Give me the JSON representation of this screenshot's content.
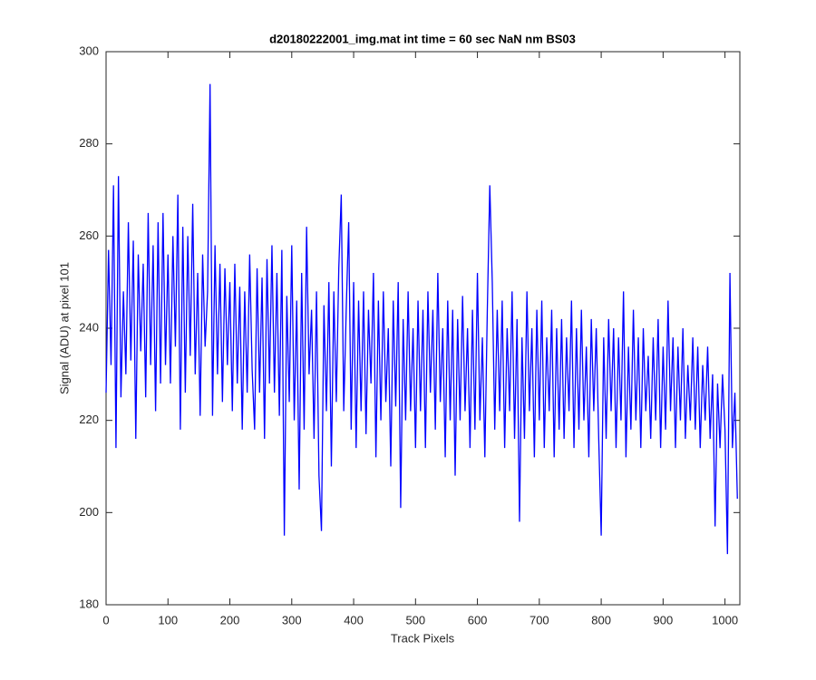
{
  "chart_data": {
    "type": "line",
    "title": "d20180222001_img.mat int time = 60 sec  NaN nm BS03",
    "x_label": "Track Pixels",
    "y_label": "Signal (ADU) at pixel 101",
    "color": "#0000ff",
    "xlim": [
      0,
      1024
    ],
    "ylim": [
      180,
      300
    ],
    "xticks": [
      0,
      100,
      200,
      300,
      400,
      500,
      600,
      700,
      800,
      900,
      1000
    ],
    "yticks": [
      180,
      200,
      220,
      240,
      260,
      280,
      300
    ],
    "grid": false,
    "x": [
      0,
      4,
      8,
      12,
      16,
      20,
      24,
      28,
      32,
      36,
      40,
      44,
      48,
      52,
      56,
      60,
      64,
      68,
      72,
      76,
      80,
      84,
      88,
      92,
      96,
      100,
      104,
      108,
      112,
      116,
      120,
      124,
      128,
      132,
      136,
      140,
      144,
      148,
      152,
      156,
      160,
      164,
      168,
      172,
      176,
      180,
      184,
      188,
      192,
      196,
      200,
      204,
      208,
      212,
      216,
      220,
      224,
      228,
      232,
      236,
      240,
      244,
      248,
      252,
      256,
      260,
      264,
      268,
      272,
      276,
      280,
      284,
      288,
      292,
      296,
      300,
      304,
      308,
      312,
      316,
      320,
      324,
      328,
      332,
      336,
      340,
      344,
      348,
      352,
      356,
      360,
      364,
      368,
      372,
      376,
      380,
      384,
      388,
      392,
      396,
      400,
      404,
      408,
      412,
      416,
      420,
      424,
      428,
      432,
      436,
      440,
      444,
      448,
      452,
      456,
      460,
      464,
      468,
      472,
      476,
      480,
      484,
      488,
      492,
      496,
      500,
      504,
      508,
      512,
      516,
      520,
      524,
      528,
      532,
      536,
      540,
      544,
      548,
      552,
      556,
      560,
      564,
      568,
      572,
      576,
      580,
      584,
      588,
      592,
      596,
      600,
      604,
      608,
      612,
      616,
      620,
      624,
      628,
      632,
      636,
      640,
      644,
      648,
      652,
      656,
      660,
      664,
      668,
      672,
      676,
      680,
      684,
      688,
      692,
      696,
      700,
      704,
      708,
      712,
      716,
      720,
      724,
      728,
      732,
      736,
      740,
      744,
      748,
      752,
      756,
      760,
      764,
      768,
      772,
      776,
      780,
      784,
      788,
      792,
      796,
      800,
      804,
      808,
      812,
      816,
      820,
      824,
      828,
      832,
      836,
      840,
      844,
      848,
      852,
      856,
      860,
      864,
      868,
      872,
      876,
      880,
      884,
      888,
      892,
      896,
      900,
      904,
      908,
      912,
      916,
      920,
      924,
      928,
      932,
      936,
      940,
      944,
      948,
      952,
      956,
      960,
      964,
      968,
      972,
      976,
      980,
      984,
      988,
      992,
      996,
      1000,
      1004,
      1008,
      1012,
      1016,
      1020
    ],
    "values": [
      226,
      257,
      232,
      271,
      214,
      273,
      225,
      248,
      230,
      263,
      233,
      259,
      216,
      256,
      235,
      254,
      225,
      265,
      232,
      258,
      222,
      263,
      228,
      265,
      232,
      256,
      228,
      260,
      236,
      269,
      218,
      262,
      226,
      260,
      234,
      267,
      230,
      252,
      221,
      256,
      236,
      248,
      293,
      221,
      258,
      230,
      254,
      224,
      253,
      232,
      250,
      222,
      254,
      228,
      249,
      218,
      248,
      226,
      256,
      231,
      218,
      253,
      226,
      251,
      216,
      255,
      228,
      258,
      226,
      252,
      221,
      257,
      195,
      247,
      224,
      258,
      220,
      246,
      205,
      252,
      218,
      262,
      230,
      244,
      216,
      248,
      208,
      196,
      245,
      222,
      250,
      210,
      248,
      224,
      253,
      269,
      222,
      244,
      263,
      218,
      250,
      214,
      246,
      222,
      248,
      217,
      244,
      228,
      252,
      212,
      246,
      220,
      248,
      224,
      240,
      210,
      246,
      223,
      250,
      201,
      242,
      220,
      248,
      222,
      240,
      214,
      246,
      222,
      244,
      214,
      248,
      226,
      244,
      218,
      252,
      224,
      240,
      212,
      246,
      220,
      244,
      208,
      242,
      220,
      247,
      222,
      240,
      214,
      244,
      218,
      252,
      220,
      238,
      212,
      244,
      271,
      250,
      218,
      244,
      222,
      246,
      214,
      240,
      222,
      248,
      216,
      242,
      198,
      238,
      216,
      248,
      222,
      240,
      212,
      244,
      220,
      246,
      214,
      238,
      222,
      244,
      212,
      240,
      218,
      242,
      216,
      238,
      222,
      246,
      214,
      240,
      218,
      244,
      220,
      236,
      212,
      242,
      222,
      240,
      216,
      195,
      238,
      216,
      242,
      222,
      240,
      214,
      238,
      220,
      248,
      212,
      236,
      218,
      244,
      220,
      238,
      214,
      240,
      222,
      234,
      216,
      238,
      220,
      242,
      214,
      236,
      218,
      246,
      222,
      238,
      214,
      236,
      220,
      240,
      216,
      232,
      220,
      238,
      218,
      236,
      214,
      232,
      220,
      236,
      216,
      230,
      197,
      228,
      214,
      230,
      218,
      191,
      252,
      214,
      226,
      203
    ]
  }
}
